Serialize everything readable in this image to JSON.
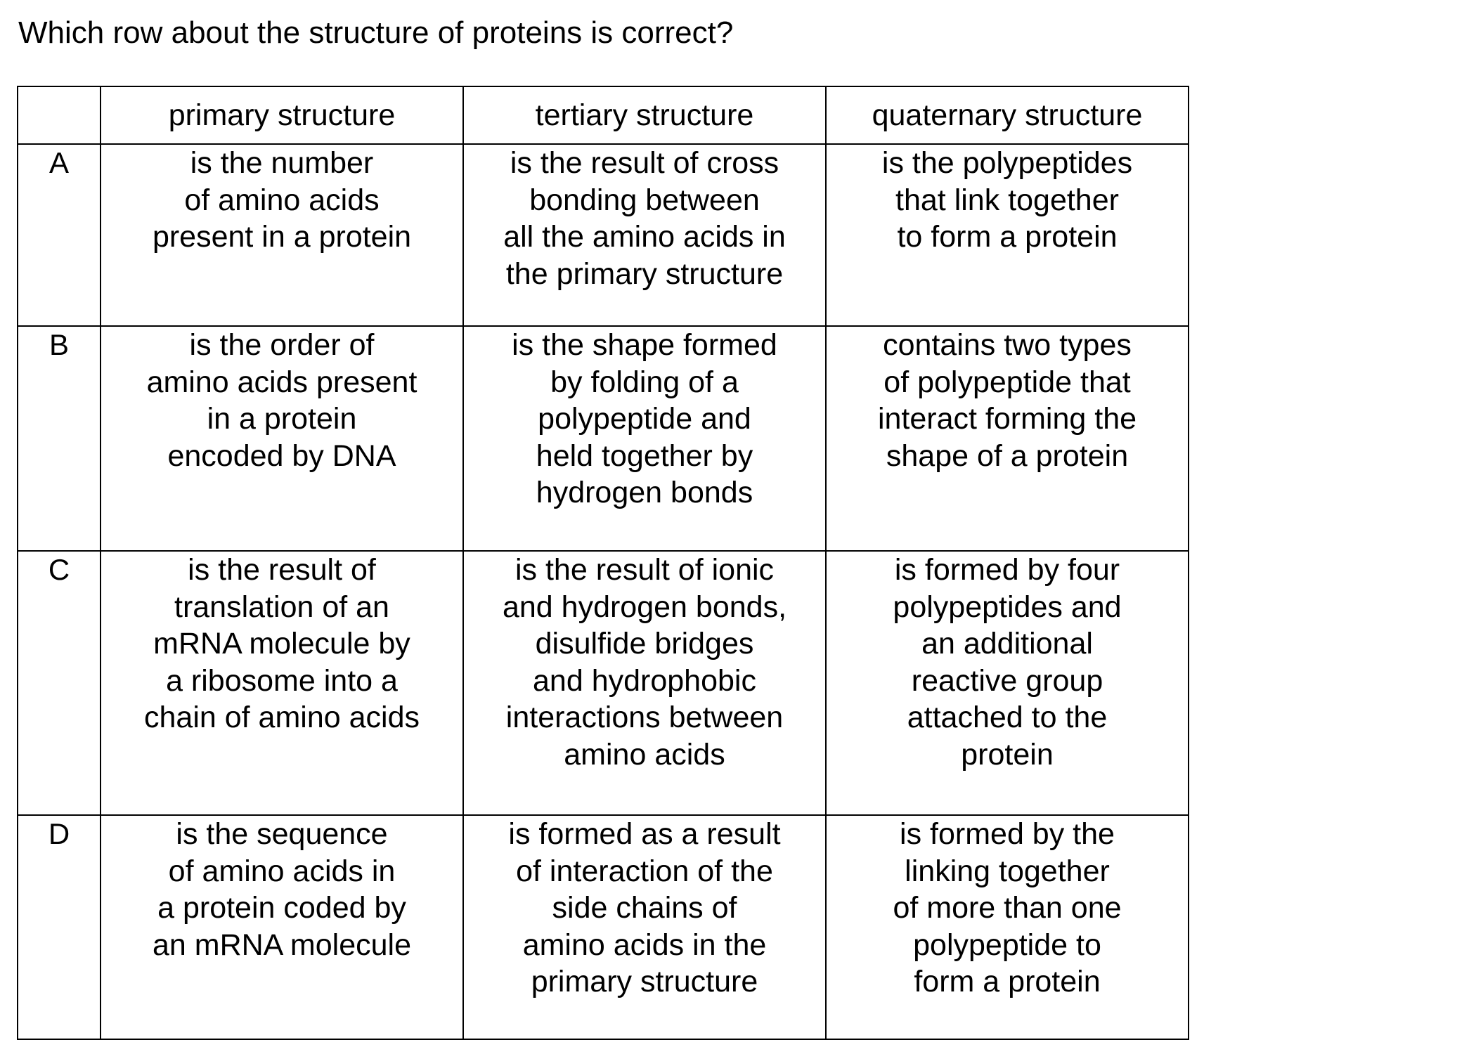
{
  "question": "Which row about the structure of proteins is correct?",
  "table": {
    "headers": [
      "",
      "primary structure",
      "tertiary structure",
      "quaternary structure"
    ],
    "rows": [
      {
        "key": "A",
        "primary": [
          "is the number",
          "of amino acids",
          "present in a protein"
        ],
        "tertiary": [
          "is the result of cross",
          "bonding between",
          "all the amino acids in",
          "the primary structure"
        ],
        "quaternary": [
          "is the polypeptides",
          "that link together",
          "to form a protein"
        ]
      },
      {
        "key": "B",
        "primary": [
          "is the order of",
          "amino acids present",
          "in a protein",
          "encoded by DNA"
        ],
        "tertiary": [
          "is the shape formed",
          "by folding of a",
          "polypeptide and",
          "held together by",
          "hydrogen bonds"
        ],
        "quaternary": [
          "contains two types",
          "of polypeptide that",
          "interact forming the",
          "shape of a protein"
        ]
      },
      {
        "key": "C",
        "primary": [
          "is the result of",
          "translation of an",
          "mRNA molecule by",
          "a ribosome into a",
          "chain of amino acids"
        ],
        "tertiary": [
          "is the result of ionic",
          "and hydrogen bonds,",
          "disulfide bridges",
          "and hydrophobic",
          "interactions between",
          "amino acids"
        ],
        "quaternary": [
          "is formed by four",
          "polypeptides and",
          "an additional",
          "reactive group",
          "attached to the",
          "protein"
        ]
      },
      {
        "key": "D",
        "primary": [
          "is the sequence",
          "of amino acids in",
          "a protein coded by",
          "an mRNA molecule"
        ],
        "tertiary": [
          "is formed as a result",
          "of interaction of the",
          "side chains of",
          "amino acids in the",
          "primary structure"
        ],
        "quaternary": [
          "is formed by the",
          "linking together",
          "of more than one",
          "polypeptide to",
          "form a protein"
        ]
      }
    ]
  }
}
